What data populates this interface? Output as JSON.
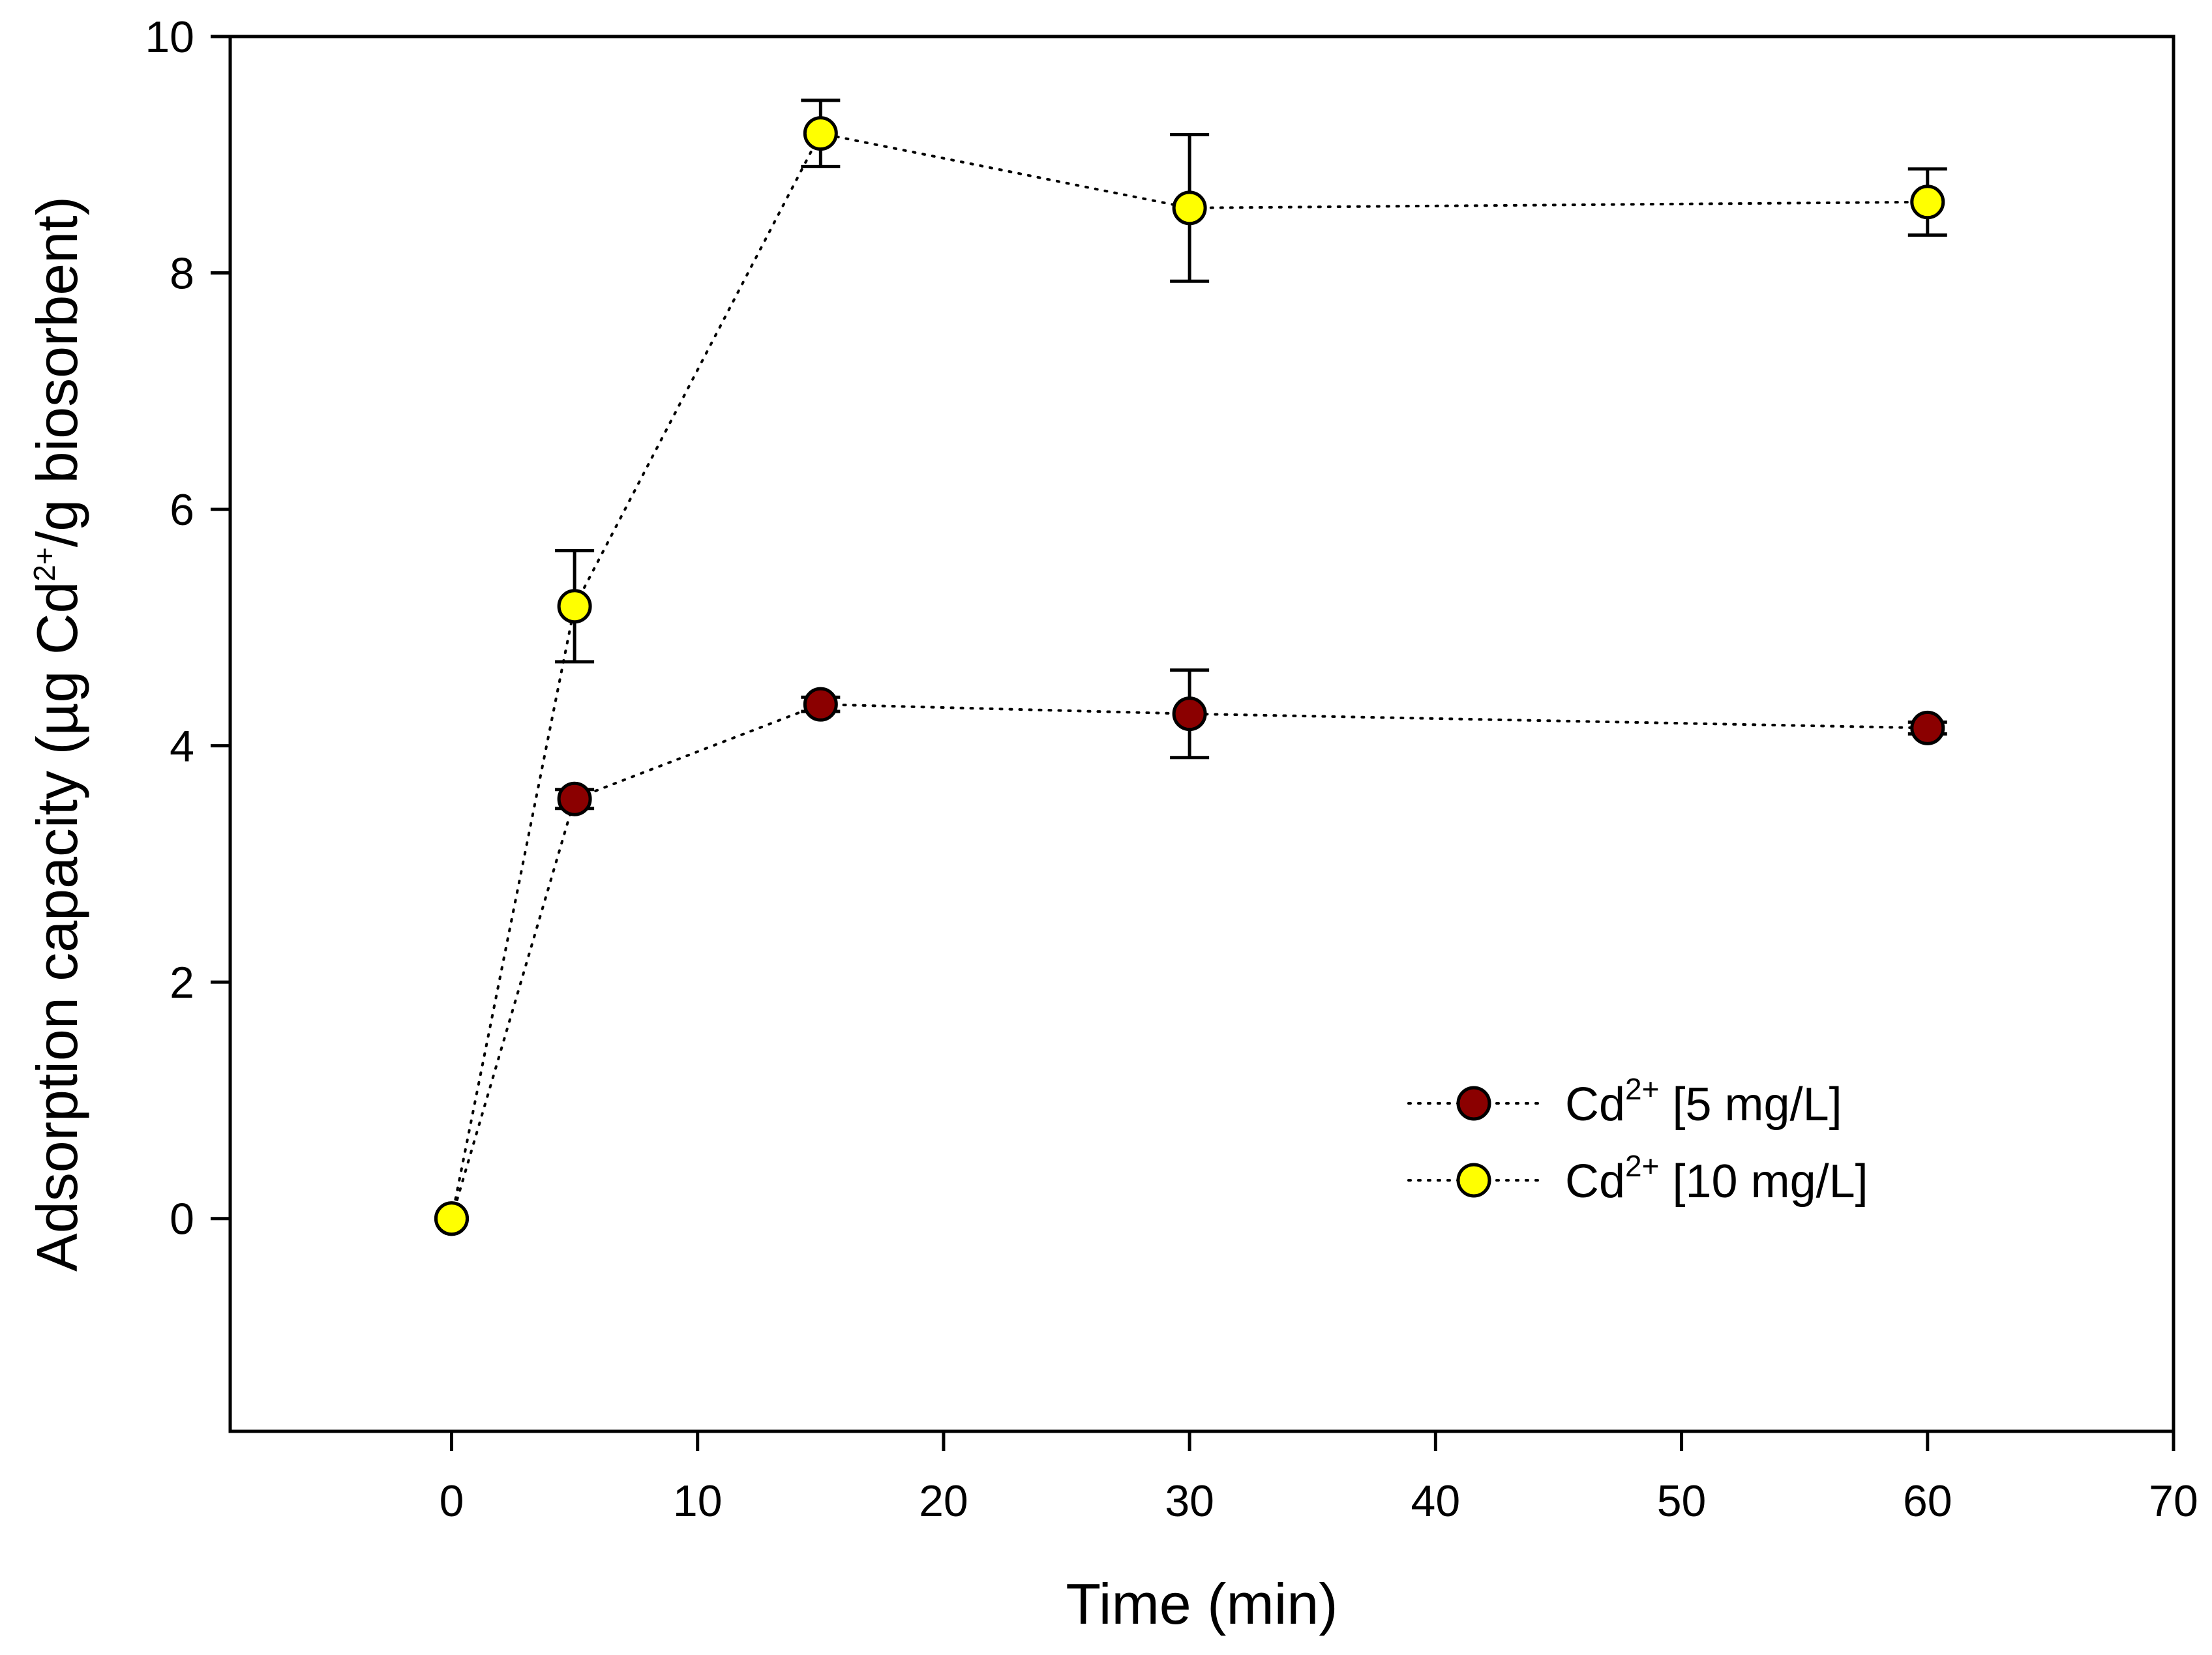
{
  "chart_data": {
    "type": "scatter",
    "xlabel": "Time (min)",
    "ylabel": {
      "parts": [
        {
          "text": "Adsorption capacity (µg Cd",
          "sup": false
        },
        {
          "text": "2+",
          "sup": true
        },
        {
          "text": "/g biosorbent)",
          "sup": false
        }
      ]
    },
    "xlim": [
      -9,
      70
    ],
    "ylim": [
      -1.8,
      10
    ],
    "xticks": [
      0,
      10,
      20,
      30,
      40,
      50,
      60,
      70
    ],
    "yticks": [
      0,
      2,
      4,
      6,
      8,
      10
    ],
    "line_style": "dotted",
    "marker": "circle",
    "error_bars": true,
    "legend_position": "lower-right",
    "series": [
      {
        "name": {
          "base": "Cd",
          "sup": "2+",
          "rest": " [5 mg/L]"
        },
        "color": "#8b0000",
        "points": [
          {
            "x": 0,
            "y": 0,
            "err": 0
          },
          {
            "x": 5,
            "y": 3.55,
            "err": 0.08
          },
          {
            "x": 15,
            "y": 4.35,
            "err": 0.06
          },
          {
            "x": 30,
            "y": 4.27,
            "err": 0.37
          },
          {
            "x": 60,
            "y": 4.15,
            "err": 0.05
          }
        ]
      },
      {
        "name": {
          "base": "Cd",
          "sup": "2+",
          "rest": " [10 mg/L]"
        },
        "color": "#ffff00",
        "points": [
          {
            "x": 0,
            "y": 0,
            "err": 0
          },
          {
            "x": 5,
            "y": 5.18,
            "err": 0.47
          },
          {
            "x": 15,
            "y": 9.18,
            "err": 0.28
          },
          {
            "x": 30,
            "y": 8.55,
            "err": 0.62
          },
          {
            "x": 60,
            "y": 8.6,
            "err": 0.28
          }
        ]
      }
    ]
  }
}
